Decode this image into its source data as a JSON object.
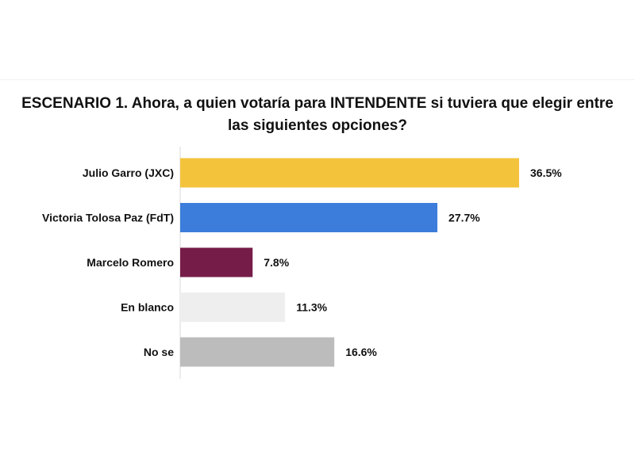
{
  "title_line1": "ESCENARIO 1. Ahora, a quien votaría para INTENDENTE  si tuviera que elegir entre",
  "title_line2": "las siguientes opciones?",
  "chart_data": {
    "type": "bar",
    "orientation": "horizontal",
    "title": "ESCENARIO 1. Ahora, a quien votaría para INTENDENTE  si tuviera que elegir entre las siguientes opciones?",
    "categories": [
      "Julio Garro (JXC)",
      "Victoria Tolosa Paz (FdT)",
      "Marcelo Romero",
      "En blanco",
      "No se"
    ],
    "values": [
      36.5,
      27.7,
      7.8,
      11.3,
      16.6
    ],
    "value_labels": [
      "36.5%",
      "27.7%",
      "7.8%",
      "11.3%",
      "16.6%"
    ],
    "colors": [
      "#f3c33b",
      "#3c7ddb",
      "#761c48",
      "#eeeeee",
      "#bcbcbc"
    ],
    "unit": "%",
    "xlim": [
      0,
      40
    ],
    "grid": false,
    "legend": "none"
  }
}
